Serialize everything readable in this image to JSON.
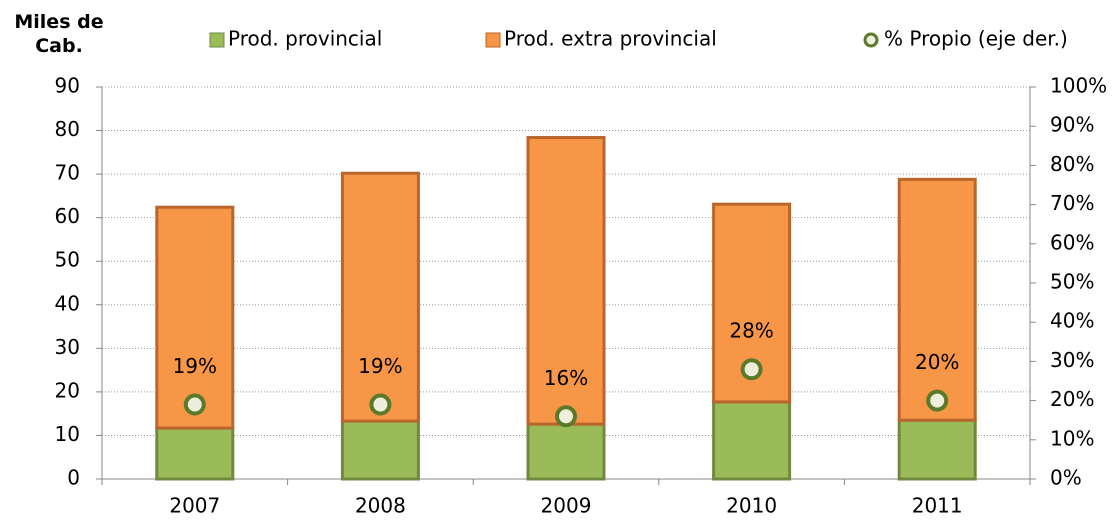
{
  "chart_data": {
    "type": "bar",
    "stacked": true,
    "y_label": "Miles de Cab.",
    "categories": [
      "2007",
      "2008",
      "2009",
      "2010",
      "2011"
    ],
    "series": [
      {
        "name": "Prod. provincial",
        "color": "#9bbb59",
        "border": "#71893f",
        "values": [
          11.7,
          13.3,
          12.6,
          17.7,
          13.5
        ]
      },
      {
        "name": "Prod. extra provincial",
        "color": "#f79646",
        "border": "#b9652b",
        "values": [
          50.7,
          56.9,
          65.8,
          45.4,
          55.3
        ]
      },
      {
        "name": "% Propio (eje der.)",
        "type": "scatter",
        "axis": "y2",
        "color": "#eeeedd",
        "border": "#5a7a2a",
        "values": [
          19,
          19,
          16,
          28,
          20
        ],
        "value_labels": [
          "19%",
          "19%",
          "16%",
          "28%",
          "20%"
        ]
      }
    ],
    "ylim": [
      0,
      90
    ],
    "yticks": [
      0,
      10,
      20,
      30,
      40,
      50,
      60,
      70,
      80,
      90
    ],
    "y2lim": [
      0,
      100
    ],
    "y2ticks": [
      {
        "value": 0,
        "label": "0%"
      },
      {
        "value": 10,
        "label": "10%"
      },
      {
        "value": 20,
        "label": "20%"
      },
      {
        "value": 30,
        "label": "30%"
      },
      {
        "value": 40,
        "label": "40%"
      },
      {
        "value": 50,
        "label": "50%"
      },
      {
        "value": 60,
        "label": "60%"
      },
      {
        "value": 70,
        "label": "70%"
      },
      {
        "value": 80,
        "label": "80%"
      },
      {
        "value": 90,
        "label": "90%"
      },
      {
        "value": 100,
        "label": "100%"
      }
    ],
    "grid": true,
    "legend": "top"
  }
}
